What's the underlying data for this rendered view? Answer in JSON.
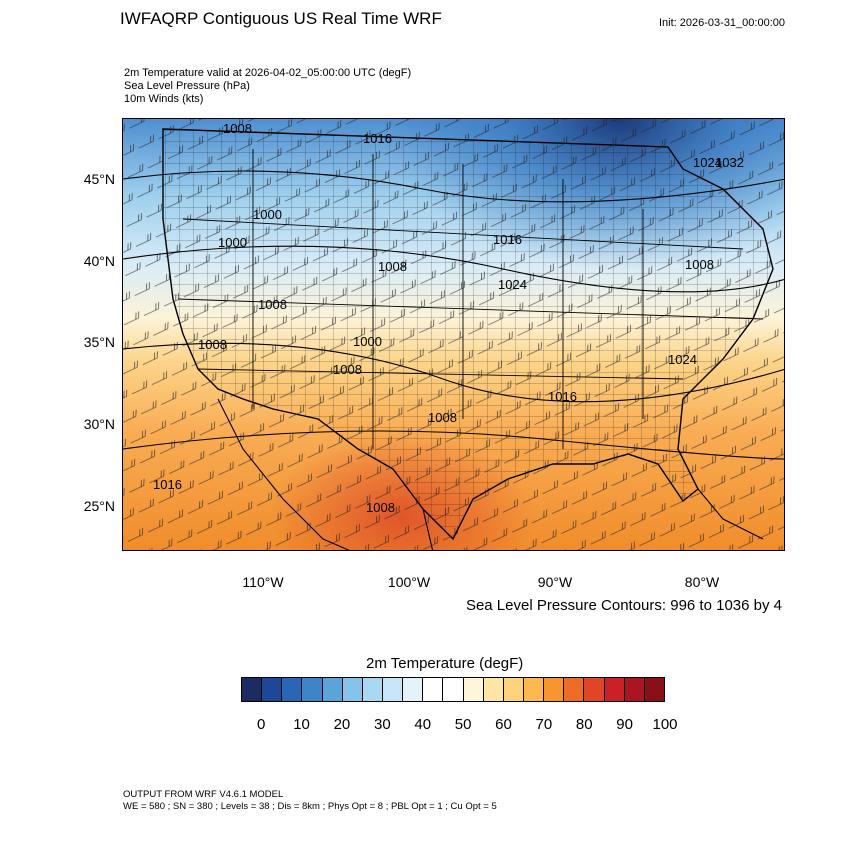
{
  "title": "IWFAQRP Contiguous US Real Time WRF",
  "init": "Init: 2026-03-31_00:00:00",
  "subtitles": [
    "2m Temperature valid at 2026-04-02_05:00:00 UTC   (degF)",
    "Sea Level Pressure   (hPa)",
    "10m Winds   (kts)"
  ],
  "lat_labels": [
    "45°N",
    "40°N",
    "35°N",
    "30°N",
    "25°N"
  ],
  "lon_labels": [
    "110°W",
    "100°W",
    "90°W",
    "80°W"
  ],
  "contour_note": "Sea Level Pressure Contours: 996 to 1036 by 4",
  "isobar_labels": [
    "1008",
    "1016",
    "1024",
    "1032",
    "1000",
    "1000",
    "1016",
    "1008",
    "1024",
    "1008",
    "1000",
    "1008",
    "1008",
    "1008",
    "1016",
    "1024",
    "1016",
    "1008",
    "1008"
  ],
  "colorbar": {
    "title": "2m Temperature  (degF)",
    "colors": [
      "#1b2c63",
      "#1f4797",
      "#2a66b5",
      "#3d85c8",
      "#5aa4da",
      "#86c3ea",
      "#a9d8f3",
      "#c7e5f6",
      "#e4f2fa",
      "#ffffff",
      "#ffffff",
      "#fff6d9",
      "#ffe6a6",
      "#fed27a",
      "#fdb94f",
      "#f7962f",
      "#ef6b28",
      "#e04526",
      "#c92126",
      "#ab1522",
      "#8a1018"
    ],
    "ticks": [
      "0",
      "10",
      "20",
      "30",
      "40",
      "50",
      "60",
      "70",
      "80",
      "90",
      "100"
    ]
  },
  "footer": [
    "OUTPUT FROM WRF V4.6.1 MODEL",
    "WE = 580 ; SN = 380 ; Levels = 38 ; Dis = 8km ; Phys Opt = 8 ; PBL Opt = 1 ; Cu Opt = 5"
  ]
}
